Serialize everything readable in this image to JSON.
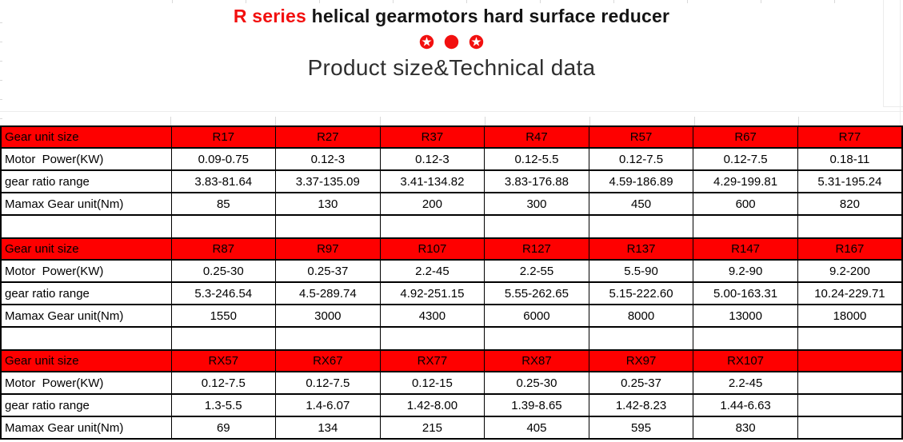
{
  "header": {
    "title_series": "R series",
    "title_rest": " helical gearmotors hard surface reducer",
    "subtitle": "Product size&Technical data",
    "icons": [
      "star-circle",
      "dot-circle",
      "star-circle"
    ],
    "accent_red": "#f2100f"
  },
  "table_style": {
    "header_fill": "#fe0000",
    "header_text_color": "#000000",
    "border_color": "#000000"
  },
  "tables": [
    {
      "header": [
        "Gear unit size",
        "R17",
        "R27",
        "R37",
        "R47",
        "R57",
        "R67",
        "R77"
      ],
      "rows": [
        [
          "Motor  Power(KW)",
          "0.09-0.75",
          "0.12-3",
          "0.12-3",
          "0.12-5.5",
          "0.12-7.5",
          "0.12-7.5",
          "0.18-11"
        ],
        [
          "gear ratio range",
          "3.83-81.64",
          "3.37-135.09",
          "3.41-134.82",
          "3.83-176.88",
          "4.59-186.89",
          "4.29-199.81",
          "5.31-195.24"
        ],
        [
          "Mamax Gear unit(Nm)",
          "85",
          "130",
          "200",
          "300",
          "450",
          "600",
          "820"
        ]
      ]
    },
    {
      "header": [
        "Gear unit size",
        "R87",
        "R97",
        "R107",
        "R127",
        "R137",
        "R147",
        "R167"
      ],
      "rows": [
        [
          "Motor  Power(KW)",
          "0.25-30",
          "0.25-37",
          "2.2-45",
          "2.2-55",
          "5.5-90",
          "9.2-90",
          "9.2-200"
        ],
        [
          "gear ratio range",
          "5.3-246.54",
          "4.5-289.74",
          "4.92-251.15",
          "5.55-262.65",
          "5.15-222.60",
          "5.00-163.31",
          "10.24-229.71"
        ],
        [
          "Mamax Gear unit(Nm)",
          "1550",
          "3000",
          "4300",
          "6000",
          "8000",
          "13000",
          "18000"
        ]
      ]
    },
    {
      "header": [
        "Gear unit size",
        "RX57",
        "RX67",
        "RX77",
        "RX87",
        "RX97",
        "RX107",
        ""
      ],
      "rows": [
        [
          "Motor  Power(KW)",
          "0.12-7.5",
          "0.12-7.5",
          "0.12-15",
          "0.25-30",
          "0.25-37",
          "2.2-45",
          ""
        ],
        [
          "gear ratio range",
          "1.3-5.5",
          "1.4-6.07",
          "1.42-8.00",
          "1.39-8.65",
          "1.42-8.23",
          "1.44-6.63",
          ""
        ],
        [
          "Mamax Gear unit(Nm)",
          "69",
          "134",
          "215",
          "405",
          "595",
          "830",
          ""
        ]
      ]
    }
  ]
}
